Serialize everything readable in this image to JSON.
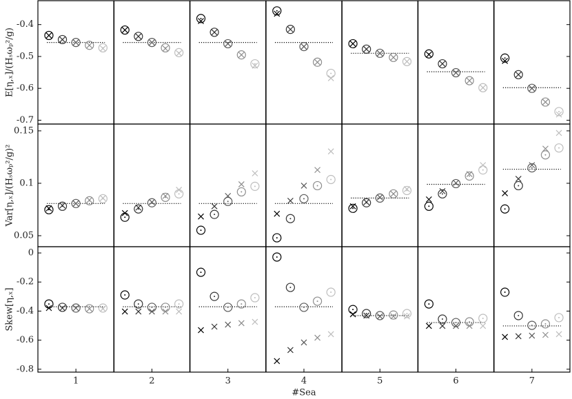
{
  "chart_data": [
    {
      "type": "scatter",
      "ylabel": "E[η,ₓ]/(Hₛωₚ²/g)",
      "ylim": [
        -0.712,
        -0.325
      ],
      "yticks": [
        -0.7,
        -0.6,
        -0.5,
        -0.4
      ],
      "marker_colors": [
        "#000000",
        "#333333",
        "#5a5a5a",
        "#8c8c8c",
        "#bdbdbd"
      ],
      "reference_color": "#000000",
      "circles": [
        [
          -0.434,
          -0.447,
          -0.456,
          -0.465,
          -0.473
        ],
        [
          -0.417,
          -0.437,
          -0.456,
          -0.473,
          -0.488
        ],
        [
          -0.381,
          -0.424,
          -0.46,
          -0.495,
          -0.523
        ],
        [
          -0.357,
          -0.415,
          -0.469,
          -0.518,
          -0.553
        ],
        [
          -0.46,
          -0.477,
          -0.49,
          -0.503,
          -0.516
        ],
        [
          -0.492,
          -0.523,
          -0.551,
          -0.576,
          -0.598
        ],
        [
          -0.505,
          -0.557,
          -0.6,
          -0.643,
          -0.673
        ]
      ],
      "crosses": [
        [
          -0.434,
          -0.447,
          -0.456,
          -0.465,
          -0.475
        ],
        [
          -0.417,
          -0.437,
          -0.456,
          -0.475,
          -0.49
        ],
        [
          -0.389,
          -0.424,
          -0.46,
          -0.495,
          -0.529
        ],
        [
          -0.366,
          -0.415,
          -0.469,
          -0.518,
          -0.568
        ],
        [
          -0.46,
          -0.477,
          -0.49,
          -0.503,
          -0.516
        ],
        [
          -0.494,
          -0.523,
          -0.551,
          -0.576,
          -0.598
        ],
        [
          -0.514,
          -0.557,
          -0.6,
          -0.643,
          -0.682
        ]
      ],
      "reference": [
        -0.456,
        -0.456,
        -0.456,
        -0.456,
        -0.49,
        -0.548,
        -0.598
      ]
    },
    {
      "type": "scatter",
      "ylabel": "Var[η,ₓ]/(Hₛωₚ²/g)²",
      "ylim": [
        0.0395,
        0.1565
      ],
      "yticks": [
        0.05,
        0.1,
        0.15
      ],
      "marker_colors": [
        "#000000",
        "#333333",
        "#5a5a5a",
        "#8c8c8c",
        "#bdbdbd"
      ],
      "reference_color": "#000000",
      "circles": [
        [
          0.0748,
          0.0781,
          0.0807,
          0.0833,
          0.0853
        ],
        [
          0.0676,
          0.0755,
          0.0814,
          0.0866,
          0.0899
        ],
        [
          0.0552,
          0.0703,
          0.0827,
          0.0918,
          0.0971
        ],
        [
          0.048,
          0.0663,
          0.0853,
          0.0977,
          0.1036
        ],
        [
          0.0761,
          0.0814,
          0.0859,
          0.0899,
          0.0931
        ],
        [
          0.0781,
          0.0899,
          0.0997,
          0.1069,
          0.1127
        ],
        [
          0.0755,
          0.0977,
          0.1147,
          0.1271,
          0.1337
        ]
      ],
      "crosses": [
        [
          0.0761,
          0.0788,
          0.0807,
          0.084,
          0.0859
        ],
        [
          0.0716,
          0.0768,
          0.082,
          0.0879,
          0.0938
        ],
        [
          0.0683,
          0.0781,
          0.0879,
          0.099,
          0.1095
        ],
        [
          0.0709,
          0.0833,
          0.0977,
          0.1127,
          0.1304
        ],
        [
          0.0781,
          0.082,
          0.0866,
          0.0899,
          0.0944
        ],
        [
          0.0846,
          0.0925,
          0.1003,
          0.1088,
          0.1173
        ],
        [
          0.0905,
          0.1042,
          0.1173,
          0.133,
          0.148
        ]
      ],
      "reference": [
        0.0807,
        0.0807,
        0.0807,
        0.0807,
        0.0859,
        0.099,
        0.1134
      ]
    },
    {
      "type": "scatter",
      "ylabel": "Skew[η,ₓ]",
      "ylim": [
        -0.82,
        0.043
      ],
      "yticks": [
        -0.8,
        -0.6,
        -0.4,
        -0.2,
        0
      ],
      "xlabel": "#Sea",
      "categories": [
        "1",
        "2",
        "3",
        "4",
        "5",
        "6",
        "7"
      ],
      "marker_colors": [
        "#000000",
        "#333333",
        "#5a5a5a",
        "#8c8c8c",
        "#bdbdbd"
      ],
      "reference_color": "#000000",
      "circles": [
        [
          -0.351,
          -0.374,
          -0.379,
          -0.384,
          -0.379
        ],
        [
          -0.289,
          -0.351,
          -0.374,
          -0.374,
          -0.351
        ],
        [
          -0.133,
          -0.299,
          -0.374,
          -0.351,
          -0.308
        ],
        [
          -0.028,
          -0.237,
          -0.374,
          -0.332,
          -0.27
        ],
        [
          -0.389,
          -0.417,
          -0.431,
          -0.427,
          -0.417
        ],
        [
          -0.351,
          -0.455,
          -0.479,
          -0.474,
          -0.45
        ],
        [
          -0.27,
          -0.431,
          -0.498,
          -0.488,
          -0.445
        ]
      ],
      "crosses": [
        [
          -0.379,
          -0.379,
          -0.379,
          -0.384,
          -0.384
        ],
        [
          -0.403,
          -0.403,
          -0.403,
          -0.403,
          -0.403
        ],
        [
          -0.531,
          -0.507,
          -0.493,
          -0.483,
          -0.474
        ],
        [
          -0.744,
          -0.668,
          -0.616,
          -0.583,
          -0.559
        ],
        [
          -0.422,
          -0.431,
          -0.436,
          -0.436,
          -0.436
        ],
        [
          -0.502,
          -0.502,
          -0.502,
          -0.502,
          -0.502
        ],
        [
          -0.578,
          -0.573,
          -0.569,
          -0.564,
          -0.559
        ]
      ],
      "reference": [
        -0.37,
        -0.37,
        -0.37,
        -0.37,
        -0.431,
        -0.479,
        -0.502
      ]
    }
  ]
}
